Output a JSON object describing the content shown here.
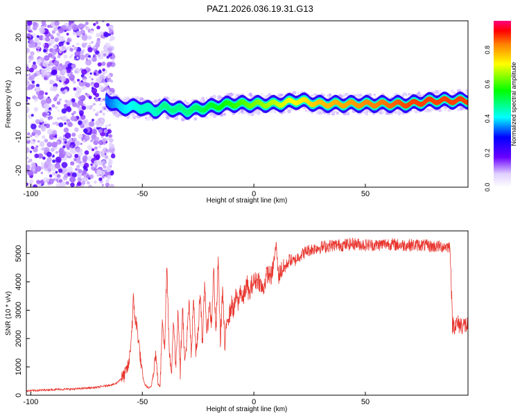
{
  "title": "PAZ1.2026.036.19.31.G13",
  "chart_data": [
    {
      "type": "heatmap",
      "name": "spectrogram",
      "xlabel": "Height of straight line (km)",
      "ylabel": "Frequency (Hz)",
      "xlim": [
        -102,
        96
      ],
      "ylim": [
        -25,
        25
      ],
      "xticks": [
        -100,
        -50,
        0,
        50
      ],
      "yticks": [
        -20,
        -10,
        0,
        10,
        20
      ],
      "colorbar": {
        "label": "Normalized spectral amplitude",
        "range": [
          0.0,
          0.97
        ],
        "ticks": [
          0.0,
          0.2,
          0.4,
          0.6,
          0.8
        ]
      },
      "ridge": {
        "description_points_x": [
          -100,
          -80,
          -70,
          -65,
          -60,
          -50,
          -45,
          -40,
          -30,
          -20,
          -10,
          0,
          10,
          20,
          30,
          40,
          50,
          60,
          70,
          80,
          95
        ],
        "frequency_hz": [
          5,
          4,
          3,
          1,
          -1,
          -1,
          -2,
          -1,
          -2,
          -1,
          0,
          0,
          0,
          1,
          0,
          0,
          0,
          0,
          0,
          1,
          1
        ],
        "amplitude": [
          0.25,
          0.3,
          0.35,
          0.35,
          0.4,
          0.45,
          0.45,
          0.5,
          0.5,
          0.55,
          0.6,
          0.65,
          0.7,
          0.75,
          0.8,
          0.82,
          0.85,
          0.87,
          0.9,
          0.9,
          0.9
        ]
      },
      "scatter_region_x": [
        -102,
        -63
      ]
    },
    {
      "type": "line",
      "name": "snr",
      "xlabel": "Height of straight line (km)",
      "ylabel": "SNR (10 * v/v)",
      "xlim": [
        -102,
        96
      ],
      "ylim": [
        0,
        5800
      ],
      "xticks": [
        -100,
        -50,
        0,
        50
      ],
      "yticks": [
        0,
        1000,
        2000,
        3000,
        4000,
        5000
      ],
      "color": "#e8352e",
      "x": [
        -102,
        -90,
        -80,
        -70,
        -62,
        -58,
        -56,
        -55,
        -54,
        -53,
        -52,
        -51,
        -50,
        -49,
        -48,
        -47,
        -46,
        -45,
        -44,
        -43,
        -42,
        -41,
        -40,
        -39,
        -38,
        -37,
        -36,
        -35,
        -34,
        -33,
        -32,
        -31,
        -30,
        -29,
        -28,
        -27,
        -26,
        -25,
        -24,
        -23,
        -22,
        -21,
        -20,
        -19,
        -18,
        -17,
        -16,
        -15,
        -14,
        -13,
        -12,
        -11,
        -10,
        -9,
        -8,
        -7,
        -6,
        -5,
        -4,
        -3,
        -2,
        -1,
        0,
        2,
        4,
        6,
        8,
        10,
        11,
        12,
        14,
        16,
        18,
        20,
        24,
        28,
        32,
        36,
        40,
        45,
        50,
        55,
        60,
        65,
        70,
        75,
        80,
        85,
        88,
        89,
        90,
        92,
        96
      ],
      "y": [
        150,
        200,
        220,
        280,
        400,
        700,
        1100,
        2000,
        3300,
        2600,
        2200,
        1400,
        700,
        400,
        300,
        250,
        300,
        900,
        1500,
        400,
        300,
        2900,
        1500,
        4700,
        1800,
        600,
        2800,
        900,
        3100,
        800,
        3300,
        1100,
        2000,
        3200,
        1300,
        3600,
        1500,
        2200,
        3800,
        1700,
        4000,
        2000,
        3300,
        2500,
        4500,
        2100,
        4800,
        1900,
        3800,
        1600,
        2800,
        2800,
        3200,
        3000,
        3500,
        3200,
        3800,
        3300,
        3700,
        3900,
        3500,
        3900,
        4000,
        4100,
        3700,
        4300,
        4200,
        5300,
        4200,
        4400,
        4500,
        4800,
        4700,
        4900,
        5100,
        5200,
        5250,
        5300,
        5300,
        5350,
        5300,
        5300,
        5350,
        5300,
        5300,
        5300,
        5250,
        5250,
        5250,
        2500,
        2500,
        2500,
        2450
      ]
    }
  ]
}
